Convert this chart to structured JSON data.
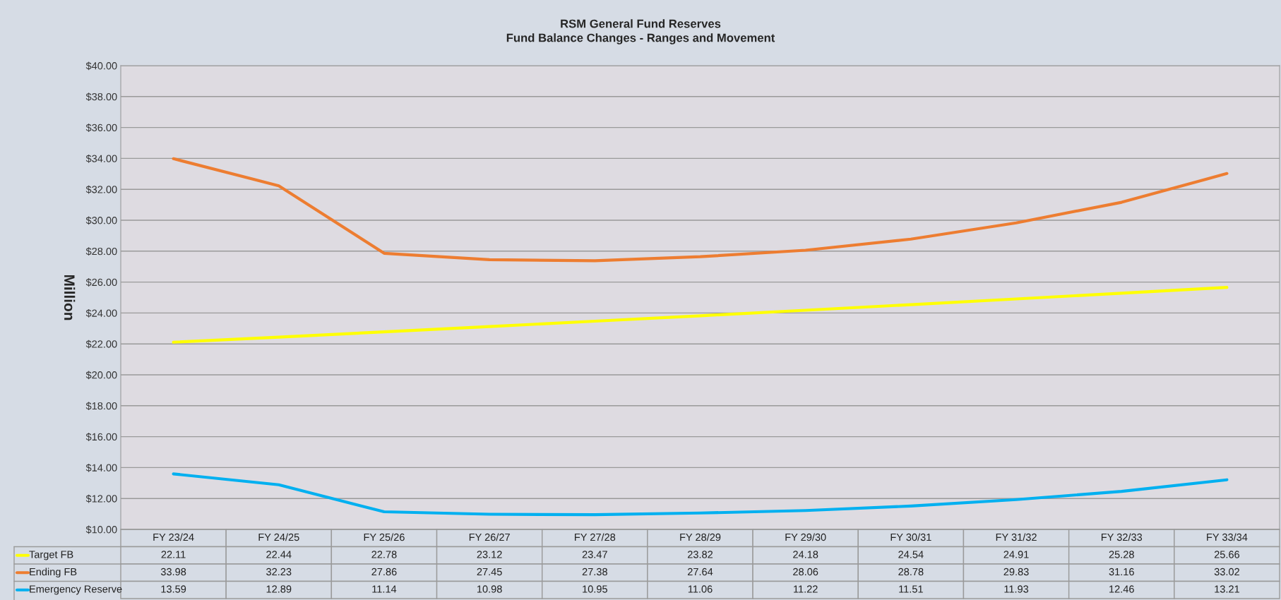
{
  "chart_data": {
    "type": "line",
    "title": "RSM General Fund Reserves",
    "subtitle": "Fund Balance Changes - Ranges and Movement",
    "ylabel": "Million",
    "categories": [
      "FY 23/24",
      "FY 24/25",
      "FY 25/26",
      "FY 26/27",
      "FY 27/28",
      "FY 28/29",
      "FY 29/30",
      "FY 30/31",
      "FY 31/32",
      "FY 32/33",
      "FY 33/34"
    ],
    "series": [
      {
        "name": "Target FB",
        "color": "#ffff00",
        "values": [
          22.11,
          22.44,
          22.78,
          23.12,
          23.47,
          23.82,
          24.18,
          24.54,
          24.91,
          25.28,
          25.66
        ]
      },
      {
        "name": "Ending FB",
        "color": "#ed7d31",
        "values": [
          33.98,
          32.23,
          27.86,
          27.45,
          27.38,
          27.64,
          28.06,
          28.78,
          29.83,
          31.16,
          33.02
        ]
      },
      {
        "name": "Emergency Reserve",
        "color": "#00b0f0",
        "values": [
          13.59,
          12.89,
          11.14,
          10.98,
          10.95,
          11.06,
          11.22,
          11.51,
          11.93,
          12.46,
          13.21
        ]
      }
    ],
    "ylim": [
      10,
      40
    ],
    "yticks": [
      {
        "value": 10,
        "label": "$10.00"
      },
      {
        "value": 12,
        "label": "$12.00"
      },
      {
        "value": 14,
        "label": "$14.00"
      },
      {
        "value": 16,
        "label": "$16.00"
      },
      {
        "value": 18,
        "label": "$18.00"
      },
      {
        "value": 20,
        "label": "$20.00"
      },
      {
        "value": 22,
        "label": "$22.00"
      },
      {
        "value": 24,
        "label": "$24.00"
      },
      {
        "value": 26,
        "label": "$26.00"
      },
      {
        "value": 28,
        "label": "$28.00"
      },
      {
        "value": 30,
        "label": "$30.00"
      },
      {
        "value": 32,
        "label": "$32.00"
      },
      {
        "value": 34,
        "label": "$34.00"
      },
      {
        "value": 36,
        "label": "$36.00"
      },
      {
        "value": 38,
        "label": "$38.00"
      },
      {
        "value": 40,
        "label": "$40.00"
      }
    ],
    "grid": "y",
    "legend": "bottom",
    "data_labels": true,
    "tick_labels": "y",
    "marker": "none",
    "line_style": "solid"
  }
}
